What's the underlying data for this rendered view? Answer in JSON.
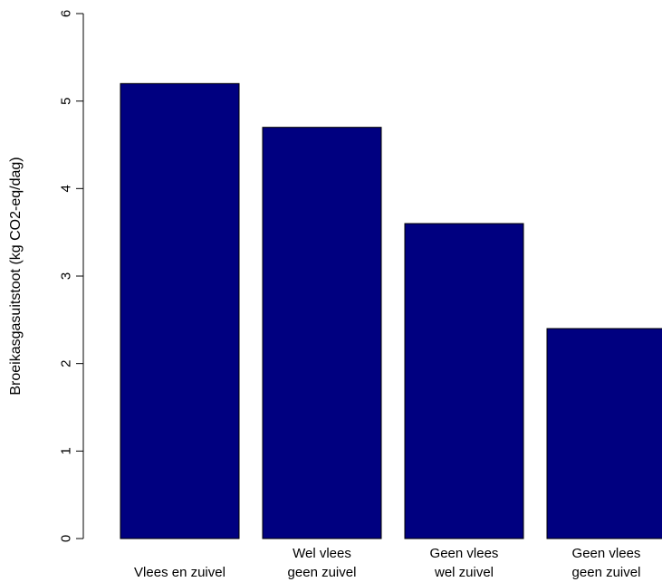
{
  "chart_data": {
    "type": "bar",
    "title": "",
    "xlabel": "",
    "ylabel": "Broeikasgasuitstoot (kg CO2-eq/dag)",
    "categories": [
      [
        "Vlees en zuivel"
      ],
      [
        "Wel vlees",
        "geen zuivel"
      ],
      [
        "Geen vlees",
        "wel zuivel"
      ],
      [
        "Geen vlees",
        "geen zuivel"
      ]
    ],
    "values": [
      5.2,
      4.7,
      3.6,
      2.4
    ],
    "ylim": [
      0,
      6
    ],
    "yticks": [
      "0",
      "1",
      "2",
      "3",
      "4",
      "5",
      "6"
    ],
    "bar_color": "#000080",
    "grid": false,
    "legend": "none"
  }
}
